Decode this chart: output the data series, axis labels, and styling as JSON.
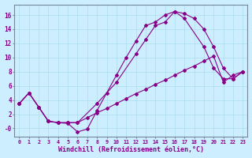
{
  "xlabel": "Windchill (Refroidissement éolien,°C)",
  "bg_color": "#cceeff",
  "grid_color": "#aaddee",
  "line_color": "#880088",
  "xlim": [
    -0.5,
    23.5
  ],
  "ylim": [
    -1.2,
    17.5
  ],
  "xticks": [
    0,
    1,
    2,
    3,
    4,
    5,
    6,
    7,
    8,
    9,
    10,
    11,
    12,
    13,
    14,
    15,
    16,
    17,
    18,
    19,
    20,
    21,
    22,
    23
  ],
  "yticks": [
    0,
    2,
    4,
    6,
    8,
    10,
    12,
    14,
    16
  ],
  "ytick_labels": [
    "-0",
    "2",
    "4",
    "6",
    "8",
    "10",
    "12",
    "14",
    "16"
  ],
  "line1_x": [
    0,
    1,
    2,
    3,
    4,
    5,
    6,
    8,
    10,
    12,
    13,
    14,
    15,
    16,
    17,
    18,
    19,
    20,
    21,
    22,
    23
  ],
  "line1_y": [
    3.5,
    5.0,
    3.0,
    1.0,
    0.8,
    0.8,
    0.8,
    3.5,
    6.5,
    10.5,
    12.5,
    14.5,
    15.0,
    16.5,
    16.2,
    15.5,
    14.0,
    11.5,
    8.5,
    7.0,
    8.0
  ],
  "line2_x": [
    0,
    1,
    2,
    3,
    4,
    5,
    6,
    7,
    8,
    9,
    10,
    11,
    12,
    13,
    14,
    15,
    16,
    17,
    19,
    20,
    21,
    22,
    23
  ],
  "line2_y": [
    3.5,
    5.0,
    3.0,
    1.0,
    0.8,
    0.7,
    -0.5,
    -0.1,
    2.5,
    5.0,
    7.5,
    10.0,
    12.3,
    14.5,
    15.0,
    16.0,
    16.5,
    15.5,
    11.5,
    8.5,
    7.0,
    7.0,
    8.0
  ],
  "line3_x": [
    0,
    1,
    2,
    3,
    4,
    5,
    6,
    7,
    8,
    9,
    10,
    11,
    12,
    13,
    14,
    15,
    16,
    17,
    18,
    19,
    20,
    21,
    22,
    23
  ],
  "line3_y": [
    3.5,
    5.0,
    3.0,
    1.0,
    0.8,
    0.8,
    0.8,
    1.5,
    2.2,
    2.8,
    3.5,
    4.2,
    4.9,
    5.5,
    6.2,
    6.8,
    7.5,
    8.2,
    8.8,
    9.5,
    10.2,
    6.5,
    7.5,
    8.0
  ]
}
